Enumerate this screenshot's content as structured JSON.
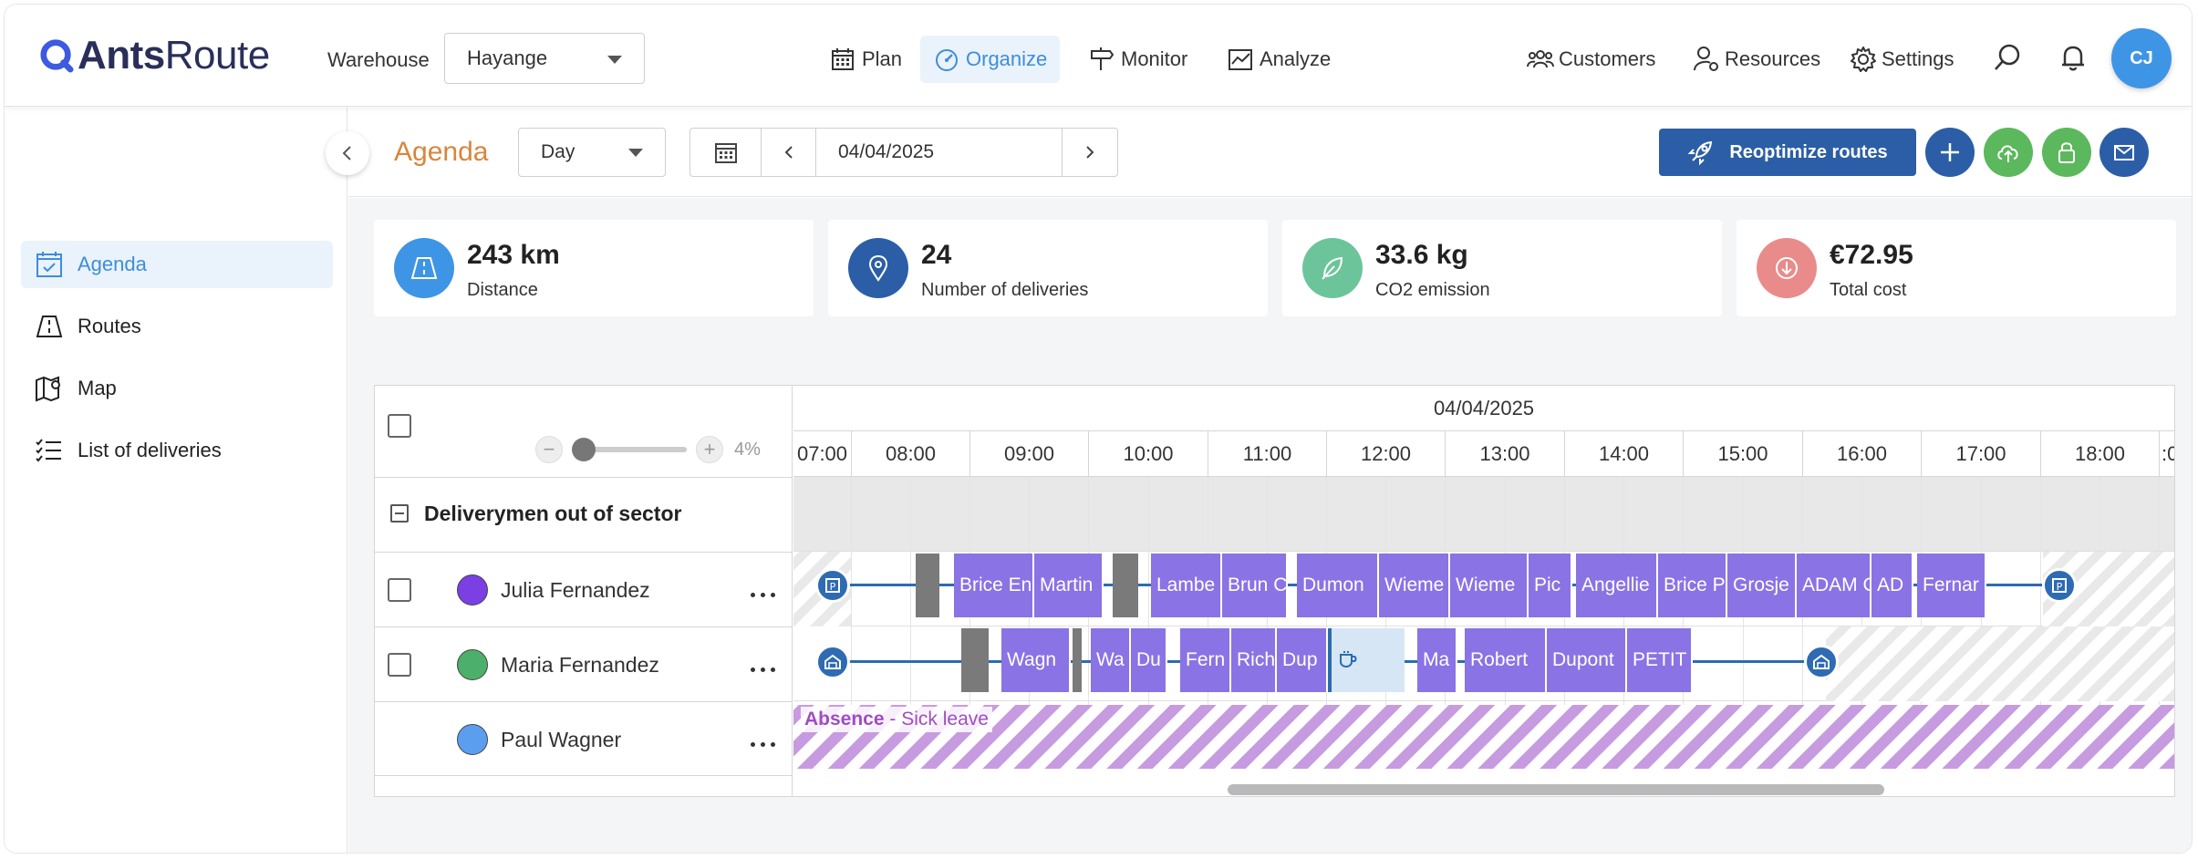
{
  "app": {
    "brand_bold": "Ants",
    "brand_light": "Route",
    "colors": {
      "accent": "#3d8edb",
      "primary_button": "#2b5ea7",
      "title_orange": "#d9853b",
      "route_purple": "#8a73e4"
    }
  },
  "header": {
    "warehouse_label": "Warehouse",
    "warehouse_value": "Hayange",
    "nav": [
      {
        "label": "Plan",
        "icon": "calendar-icon"
      },
      {
        "label": "Organize",
        "icon": "gauge-icon",
        "active": true
      },
      {
        "label": "Monitor",
        "icon": "signpost-icon"
      },
      {
        "label": "Analyze",
        "icon": "chart-icon"
      }
    ],
    "right": [
      {
        "label": "Customers",
        "icon": "customers-icon"
      },
      {
        "label": "Resources",
        "icon": "resources-icon"
      },
      {
        "label": "Settings",
        "icon": "gear-icon"
      }
    ],
    "avatar_initials": "CJ"
  },
  "sidebar": {
    "items": [
      {
        "label": "Agenda",
        "icon": "agenda-icon",
        "active": true
      },
      {
        "label": "Routes",
        "icon": "routes-icon"
      },
      {
        "label": "Map",
        "icon": "map-icon"
      },
      {
        "label": "List of deliveries",
        "icon": "list-icon"
      }
    ]
  },
  "toolbar": {
    "title": "Agenda",
    "view": "Day",
    "date": "04/04/2025",
    "reoptimize_label": "Reoptimize routes"
  },
  "kpis": [
    {
      "value": "243 km",
      "label": "Distance",
      "icon": "road-icon",
      "color": "#3e95e6"
    },
    {
      "value": "24",
      "label": "Number of deliveries",
      "icon": "pin-icon",
      "color": "#2b5ea7"
    },
    {
      "value": "33.6 kg",
      "label": "CO2 emission",
      "icon": "leaf-icon",
      "color": "#6cc59a"
    },
    {
      "value": "€72.95",
      "label": "Total cost",
      "icon": "cost-icon",
      "color": "#e98b8b"
    }
  ],
  "gantt": {
    "date": "04/04/2025",
    "zoom_percent": "4%",
    "hours": [
      "07:00",
      "08:00",
      "09:00",
      "10:00",
      "11:00",
      "12:00",
      "13:00",
      "14:00",
      "15:00",
      "16:00",
      "17:00",
      "18:00"
    ],
    "group_title": "Deliverymen out of sector",
    "rows": [
      {
        "name": "Julia Fernandez",
        "color": "#7b3fe4",
        "stops": [
          "Brice En",
          "Martin",
          "Lambe",
          "Brun C",
          "Dumon",
          "Wieme",
          "Wieme",
          "Pic",
          "Angellie",
          "Brice P",
          "Grosje",
          "ADAM C",
          "AD",
          "Fernar"
        ]
      },
      {
        "name": "Maria Fernandez",
        "color": "#4caf6a",
        "stops": [
          "Wagn",
          "Wa",
          "Du",
          "Fern",
          "Rich",
          "Dup",
          "Ma",
          "Robert",
          "Dupont",
          "PETIT"
        ]
      },
      {
        "name": "Paul Wagner",
        "color": "#5b9ef0",
        "absence_title": "Absence",
        "absence_reason": "- Sick leave"
      }
    ]
  }
}
